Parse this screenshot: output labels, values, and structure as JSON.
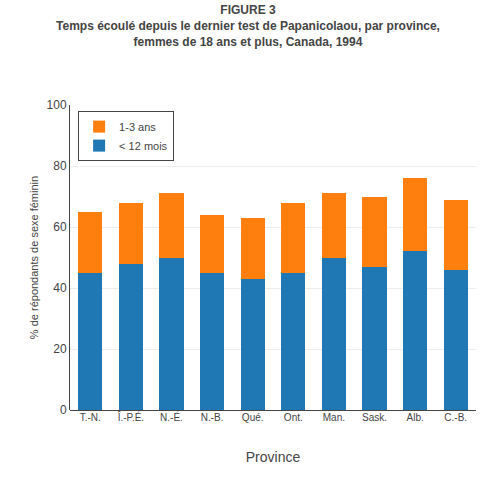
{
  "chart_data": {
    "type": "bar",
    "stacked": true,
    "title": "FIGURE 3",
    "subtitle": [
      "Temps écoulé depuis le dernier test de Papanicolaou, par province,",
      "femmes de 18 ans et plus, Canada, 1994"
    ],
    "xlabel": "Province",
    "ylabel": "% de répondants de sexe féminin",
    "categories": [
      "T.-N.",
      "Î.-P.É.",
      "N.-É.",
      "N.-B.",
      "Qué.",
      "Ont.",
      "Man.",
      "Sask.",
      "Alb.",
      "C.-B."
    ],
    "series": [
      {
        "name": "< 12 mois",
        "values": [
          45,
          48,
          50,
          45,
          43,
          45,
          50,
          47,
          52,
          46
        ]
      },
      {
        "name": "1-3 ans",
        "values": [
          20,
          20,
          21,
          19,
          20,
          23,
          21,
          23,
          24,
          23
        ]
      }
    ],
    "ylim": [
      0,
      100
    ],
    "yticks": [
      0,
      20,
      40,
      60,
      80,
      100
    ],
    "grid": true,
    "legend": "upper left"
  }
}
